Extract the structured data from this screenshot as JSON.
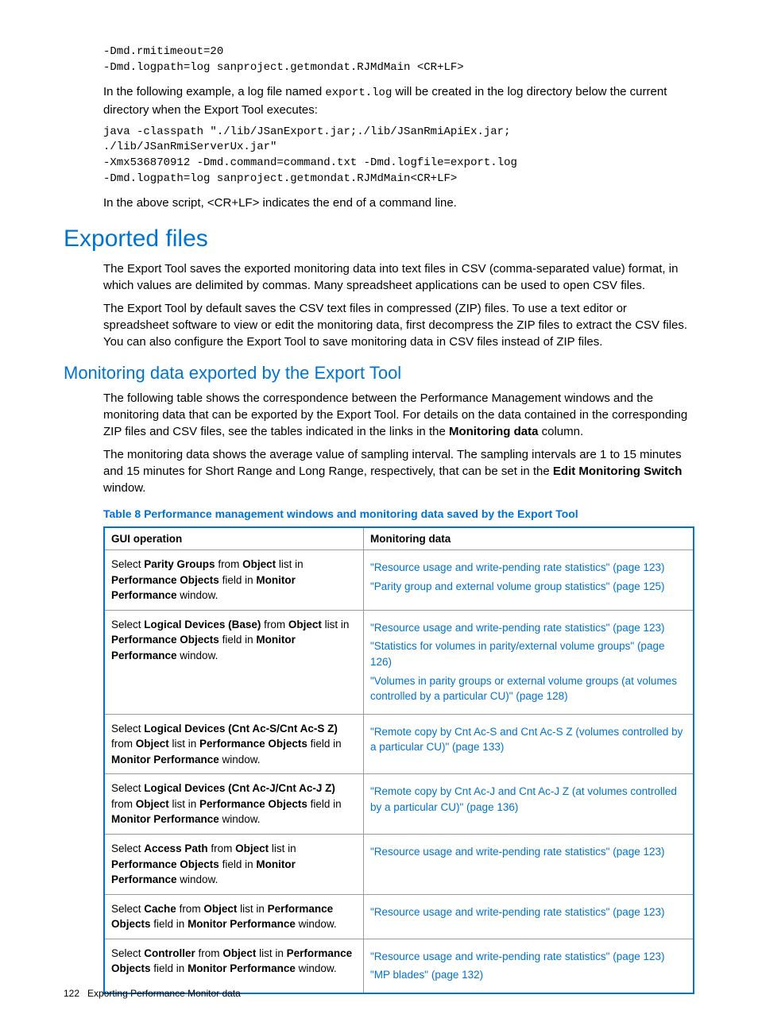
{
  "code1": "-Dmd.rmitimeout=20\n-Dmd.logpath=log sanproject.getmondat.RJMdMain <CR+LF>",
  "para1_a": "In the following example, a log file named ",
  "para1_code": "export.log",
  "para1_b": " will be created in the log directory below the current directory when the Export Tool executes:",
  "code2": "java -classpath \"./lib/JSanExport.jar;./lib/JSanRmiApiEx.jar;\n./lib/JSanRmiServerUx.jar\"\n-Xmx536870912 -Dmd.command=command.txt -Dmd.logfile=export.log\n-Dmd.logpath=log sanproject.getmondat.RJMdMain<CR+LF>",
  "para2": "In the above script, <CR+LF> indicates the end of a command line.",
  "h1": "Exported files",
  "para3": "The Export Tool saves the exported monitoring data into text files in CSV (comma-separated value) format, in which values are delimited by commas. Many spreadsheet applications can be used to open CSV files.",
  "para4": "The Export Tool by default saves the CSV text files in compressed (ZIP) files. To use a text editor or spreadsheet software to view or edit the monitoring data, first decompress the ZIP files to extract the CSV files. You can also configure the Export Tool to save monitoring data in CSV files instead of ZIP files.",
  "h2": "Monitoring data exported by the Export Tool",
  "para5_a": "The following table shows the correspondence between the Performance Management windows and the monitoring data that can be exported by the Export Tool. For details on the data contained in the corresponding ZIP files and CSV files, see the tables indicated in the links in the ",
  "para5_b": "Monitoring data",
  "para5_c": " column.",
  "para6_a": "The monitoring data shows the average value of sampling interval. The sampling intervals are 1 to 15 minutes and 15 minutes for Short Range and Long Range, respectively, that can be set in the ",
  "para6_b": "Edit Monitoring Switch",
  "para6_c": " window.",
  "table_caption": "Table 8 Performance management windows and monitoring data saved by the Export Tool",
  "table": {
    "header_col1": "GUI operation",
    "header_col2": "Monitoring data",
    "rows": [
      {
        "gui": "Select <b>Parity Groups</b> from <b>Object</b> list in <b>Performance Objects</b> field in <b>Monitor Performance</b> window.",
        "md": [
          "\"Resource usage and write-pending rate statistics\" (page 123)",
          "\"Parity group and external volume group statistics\" (page 125)"
        ]
      },
      {
        "gui": "Select <b>Logical Devices (Base)</b> from <b>Object</b> list in <b>Performance Objects</b> field in <b>Monitor Performance</b> window.",
        "md": [
          "\"Resource usage and write-pending rate statistics\" (page 123)",
          "\"Statistics for volumes in parity/external volume groups\" (page 126)",
          "\"Volumes in parity groups or external volume groups (at volumes controlled by a particular CU)\" (page 128)"
        ]
      },
      {
        "gui": "Select <b>Logical Devices (Cnt Ac-S/Cnt Ac-S Z)</b> from <b>Object</b> list in <b>Performance Objects</b> field in <b>Monitor Performance</b> window.",
        "md": [
          "\"Remote copy by Cnt Ac-S and Cnt Ac-S Z (volumes controlled by a particular CU)\" (page 133)"
        ]
      },
      {
        "gui": "Select <b>Logical Devices (Cnt Ac-J/Cnt Ac-J Z)</b> from <b>Object</b> list in <b>Performance Objects</b> field in <b>Monitor Performance</b> window.",
        "md": [
          "\"Remote copy by Cnt Ac-J and Cnt Ac-J Z (at volumes controlled by a particular CU)\" (page 136)"
        ]
      },
      {
        "gui": "Select <b>Access Path</b> from <b>Object</b> list in <b>Performance Objects</b> field in <b>Monitor Performance</b> window.",
        "md": [
          "\"Resource usage and write-pending rate statistics\" (page 123)"
        ]
      },
      {
        "gui": "Select <b>Cache</b> from <b>Object</b> list in <b>Performance Objects</b> field in <b>Monitor Performance</b> window.",
        "md": [
          "\"Resource usage and write-pending rate statistics\" (page 123)"
        ]
      },
      {
        "gui": "Select <b>Controller</b> from <b>Object</b> list in <b>Performance Objects</b> field in <b>Monitor Performance</b> window.",
        "md": [
          "\"Resource usage and write-pending rate statistics\" (page 123)",
          "\"MP blades\" (page 132)"
        ]
      }
    ]
  },
  "footer_page": "122",
  "footer_text": "Exporting Performance Monitor data"
}
